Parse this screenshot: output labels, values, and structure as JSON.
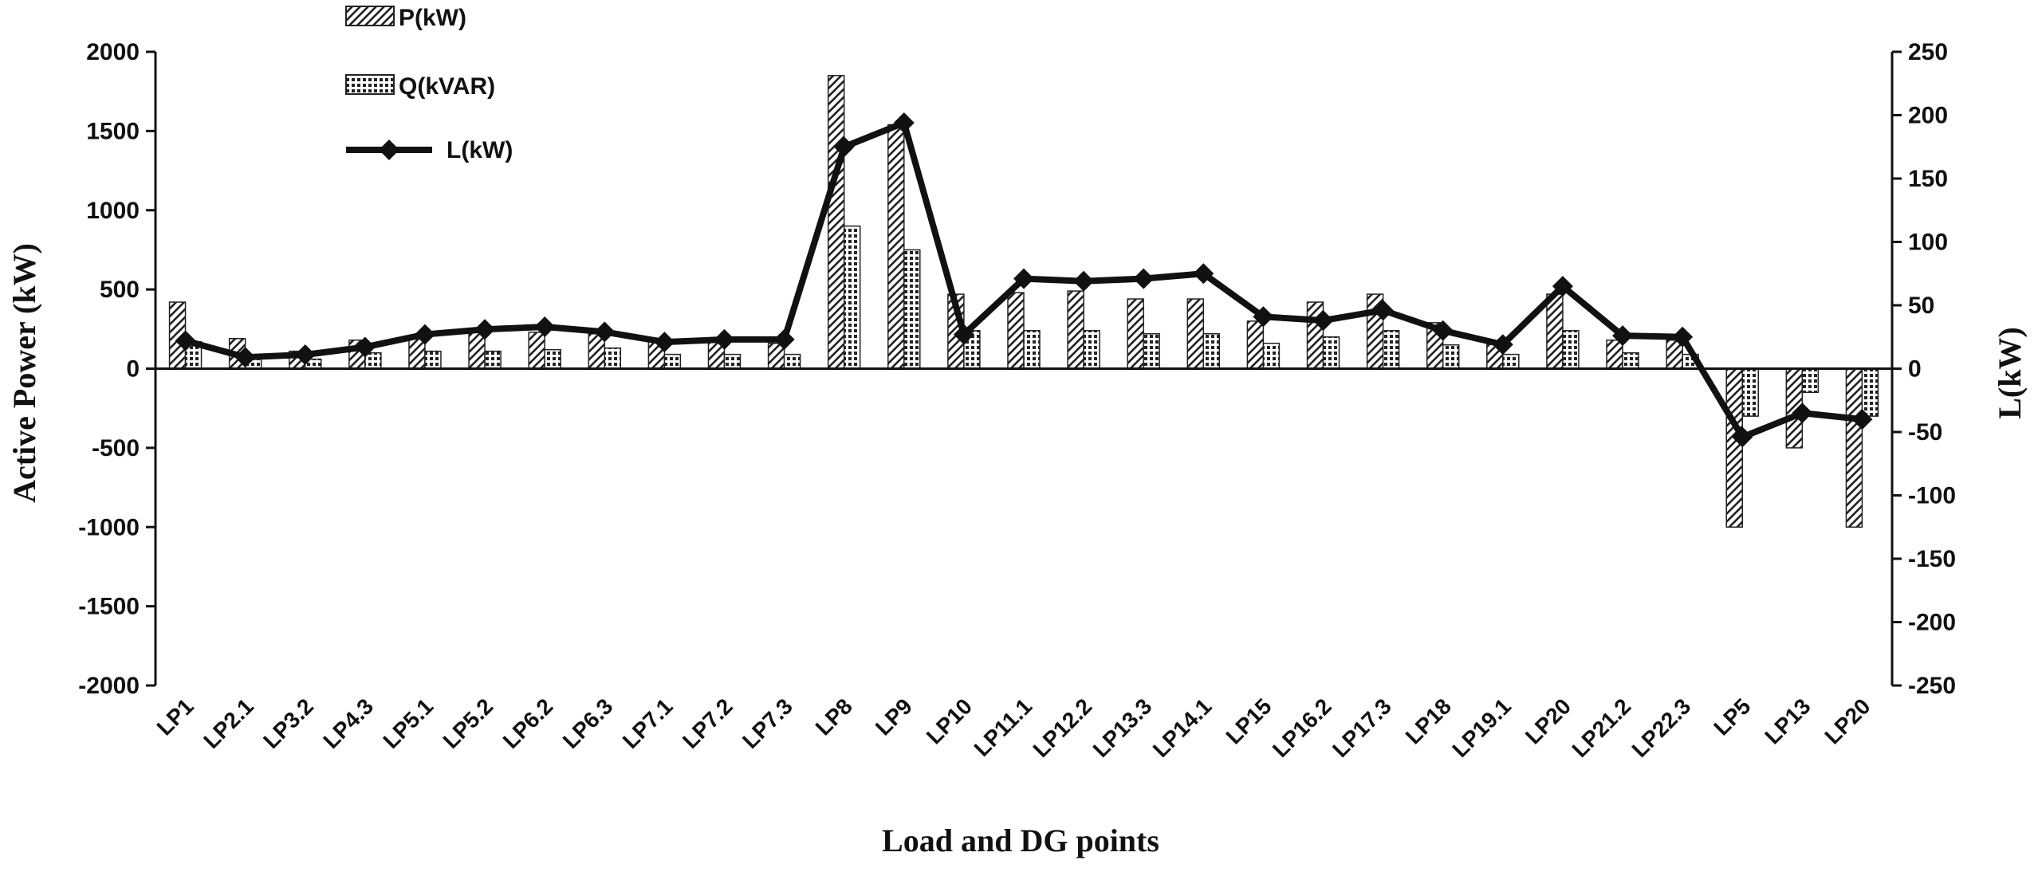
{
  "chart_data": {
    "type": "bar",
    "categories": [
      "LP1",
      "LP2.1",
      "LP3.2",
      "LP4.3",
      "LP5.1",
      "LP5.2",
      "LP6.2",
      "LP6.3",
      "LP7.1",
      "LP7.2",
      "LP7.3",
      "LP8",
      "LP9",
      "LP10",
      "LP11.1",
      "LP12.2",
      "LP13.3",
      "LP14.1",
      "LP15",
      "LP16.2",
      "LP17.3",
      "LP18",
      "LP19.1",
      "LP20",
      "LP21.2",
      "LP22.3",
      "LP5",
      "LP13",
      "LP20"
    ],
    "series": [
      {
        "name": "P(kW)",
        "type": "bar",
        "axis": "left",
        "pattern": "diagonal",
        "values": [
          420,
          190,
          110,
          180,
          210,
          230,
          230,
          220,
          170,
          170,
          160,
          1850,
          1540,
          470,
          480,
          490,
          440,
          440,
          300,
          420,
          470,
          290,
          160,
          470,
          180,
          180,
          -1000,
          -500,
          -1000
        ]
      },
      {
        "name": "Q(kVAR)",
        "type": "bar",
        "axis": "left",
        "pattern": "grid",
        "values": [
          170,
          80,
          60,
          100,
          110,
          110,
          120,
          130,
          90,
          90,
          90,
          900,
          750,
          240,
          240,
          240,
          220,
          220,
          160,
          200,
          240,
          150,
          90,
          240,
          100,
          90,
          -300,
          -150,
          -300
        ]
      },
      {
        "name": "L(kW)",
        "type": "line",
        "axis": "right",
        "marker": "diamond",
        "values": [
          22,
          9,
          11,
          17,
          27,
          31,
          33,
          29,
          21,
          23,
          23,
          175,
          194,
          27,
          71,
          69,
          71,
          75,
          41,
          38,
          46,
          30,
          19,
          65,
          26,
          25,
          -54,
          -35,
          -40
        ]
      }
    ],
    "xlabel": "Load and DG points",
    "ylabel": "Active Power (kW)",
    "y2label": "L(kW)",
    "ylim": [
      -2000,
      2000
    ],
    "y2lim": [
      -250,
      250
    ],
    "yticks": [
      "2000",
      "1500",
      "1000",
      "500",
      "0",
      "-500",
      "-1000",
      "-1500",
      "-2000"
    ],
    "y2ticks": [
      "250",
      "200",
      "150",
      "100",
      "50",
      "0",
      "-50",
      "-100",
      "-150",
      "-200",
      "-250"
    ],
    "grid": false,
    "legend_position": "top-left"
  }
}
